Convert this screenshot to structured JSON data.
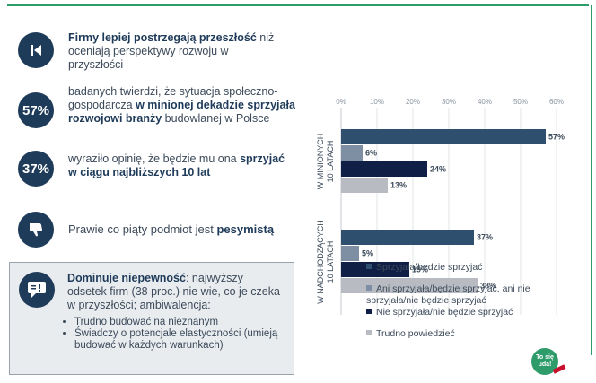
{
  "left": {
    "row1": {
      "bold": "Firmy lepiej postrzegają przeszłość",
      "rest": "niż oceniają perspektywy rozwoju w przyszłości"
    },
    "row2": {
      "badge": "57%",
      "pre": "badanych twierdzi, że sytuacja społeczno-gospodarcza ",
      "bold": "w minionej dekadzie sprzyjała rozwojowi branży",
      "post": " budowlanej w Polsce"
    },
    "row3": {
      "badge": "37%",
      "pre": "wyraziło opinię, że będzie mu ona ",
      "bold": "sprzyjać w ciągu najbliższych 10 lat"
    },
    "row4": {
      "pre": "Prawie co piąty podmiot jest ",
      "bold": "pesymistą"
    },
    "box": {
      "bold": "Dominuje niepewność",
      "rest": ": najwyższy odsetek firm (38 proc.) nie wie, co je czeka w przyszłości; ambiwalencja:",
      "bullets": [
        "Trudno budować na nieznanym",
        "Świadczy o potencjale elastyczności (umieją budować w każdych warunkach)"
      ]
    }
  },
  "chart_data": {
    "type": "bar",
    "orientation": "horizontal",
    "groups": [
      "W MINIONYCH 10 LATACH",
      "W NADCHODZĄCYCH 10 LATACH"
    ],
    "xlim": [
      0,
      60
    ],
    "ticks": [
      "0%",
      "10%",
      "20%",
      "30%",
      "40%",
      "50%",
      "60%"
    ],
    "series": [
      {
        "name": "Sprzyjała/będzie sprzyjać",
        "color": "#2f4f6f",
        "values": [
          57,
          37
        ],
        "labels": [
          "57%",
          "37%"
        ]
      },
      {
        "name": "Ani sprzyjała/będzie sprzyjać, ani nie sprzyjała/nie będzie sprzyjać",
        "color": "#7f8fa3",
        "values": [
          6,
          5
        ],
        "labels": [
          "6%",
          "5%"
        ]
      },
      {
        "name": "Nie sprzyjała/nie będzie sprzyjać",
        "color": "#0f1f45",
        "values": [
          24,
          19
        ],
        "labels": [
          "24%",
          "19%"
        ]
      },
      {
        "name": "Trudno powiedzieć",
        "color": "#b8bcc2",
        "values": [
          13,
          38
        ],
        "labels": [
          "13%",
          "38%"
        ]
      }
    ],
    "grid": true,
    "legend": "bottom"
  },
  "logo": {
    "text": "To się uda!"
  }
}
